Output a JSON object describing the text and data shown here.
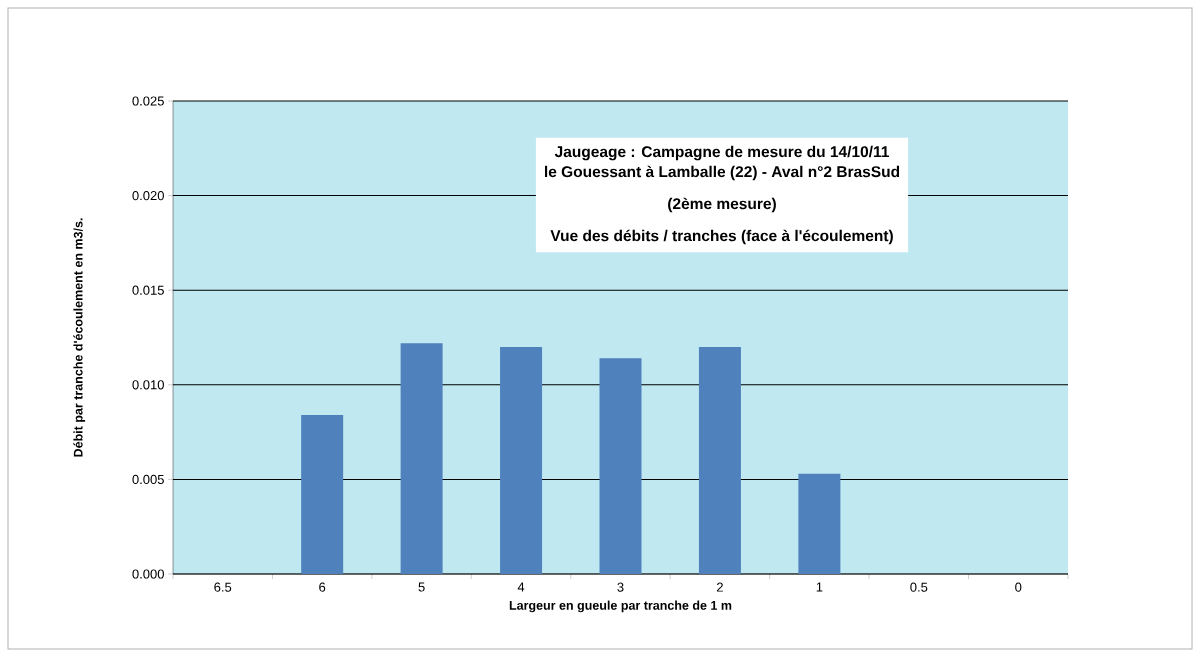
{
  "chart_data": {
    "type": "bar",
    "title": "Jaugeage : Campagne de mesure du 14/10/11",
    "subtitle": "le Gouessant à Lamballe (22) - Aval n°2 BrasSud",
    "annotations": [
      "(2ème mesure)",
      "Vue des débits / tranches (face à l'écoulement)"
    ],
    "xlabel": "Largeur en gueule par tranche de 1 m",
    "ylabel": "Débit par tranche d'écoulement  en m3/s.",
    "categories": [
      "6.5",
      "6",
      "5",
      "4",
      "3",
      "2",
      "1",
      "0.5",
      "0"
    ],
    "values": [
      null,
      0.0084,
      0.0122,
      0.012,
      0.0114,
      0.012,
      0.0053,
      null,
      null
    ],
    "color": "#4f81bd",
    "ylim": [
      0,
      0.025
    ],
    "yticks": [
      {
        "value": 0,
        "label": "0.000"
      },
      {
        "value": 0.005,
        "label": "0.005"
      },
      {
        "value": 0.01,
        "label": "0.010"
      },
      {
        "value": 0.015,
        "label": "0.015"
      },
      {
        "value": 0.02,
        "label": "0.020"
      },
      {
        "value": 0.025,
        "label": "0.025"
      }
    ],
    "grid": "y"
  }
}
